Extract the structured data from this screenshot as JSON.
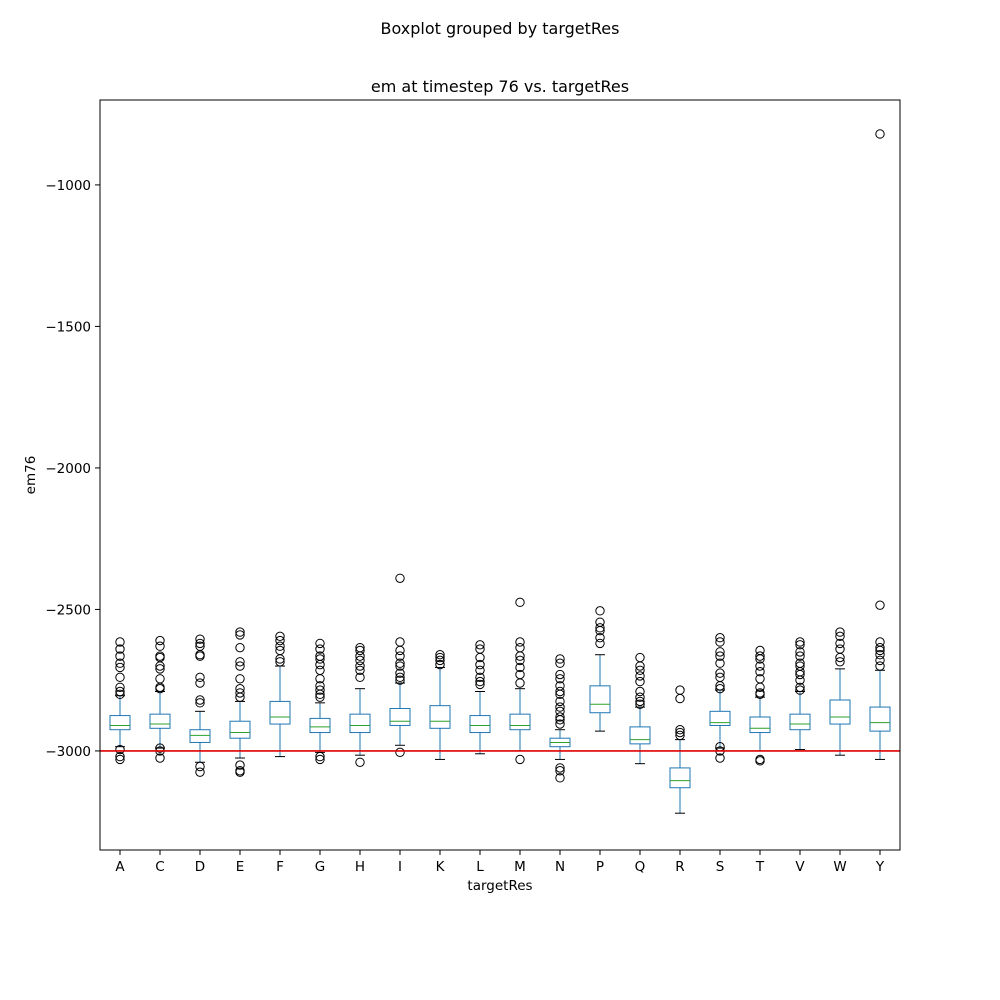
{
  "figure": {
    "suptitle": "Boxplot grouped by targetRes"
  },
  "chart_data": {
    "type": "boxplot",
    "title": "em at timestep 76 vs. targetRes",
    "xlabel": "targetRes",
    "ylabel": "em76",
    "ylim": [
      -3350,
      -700
    ],
    "yticks": [
      -1000,
      -1500,
      -2000,
      -2500,
      -3000
    ],
    "ytick_labels": [
      "−1000",
      "−1500",
      "−2000",
      "−2500",
      "−3000"
    ],
    "grid": false,
    "colors": {
      "box": "#1f77b4",
      "median": "#2ca02c",
      "whisker_cap": "#000000",
      "flier": "#000000",
      "reference_line": "#e00000"
    },
    "reference_line": {
      "y": -3000
    },
    "categories": [
      "A",
      "C",
      "D",
      "E",
      "F",
      "G",
      "H",
      "I",
      "K",
      "L",
      "M",
      "N",
      "P",
      "Q",
      "R",
      "S",
      "T",
      "V",
      "W",
      "Y"
    ],
    "boxes": [
      {
        "name": "A",
        "whislo": -2985,
        "q1": -2925,
        "med": -2910,
        "q3": -2875,
        "whishi": -2805,
        "fliers": [
          -2615,
          -2640,
          -2665,
          -2690,
          -2705,
          -2740,
          -2775,
          -2790,
          -2800,
          -2995,
          -3020,
          -3030
        ]
      },
      {
        "name": "C",
        "whislo": -2990,
        "q1": -2920,
        "med": -2905,
        "q3": -2870,
        "whishi": -2790,
        "fliers": [
          -2610,
          -2630,
          -2665,
          -2670,
          -2700,
          -2710,
          -2745,
          -2775,
          -2780,
          -2990,
          -3000,
          -3025
        ]
      },
      {
        "name": "D",
        "whislo": -3040,
        "q1": -2970,
        "med": -2945,
        "q3": -2925,
        "whishi": -2860,
        "fliers": [
          -2605,
          -2620,
          -2630,
          -2660,
          -2665,
          -2740,
          -2760,
          -2820,
          -2830,
          -3055,
          -3075
        ]
      },
      {
        "name": "E",
        "whislo": -3025,
        "q1": -2955,
        "med": -2935,
        "q3": -2895,
        "whishi": -2825,
        "fliers": [
          -2580,
          -2590,
          -2635,
          -2685,
          -2700,
          -2745,
          -2780,
          -2795,
          -2810,
          -3050,
          -3070,
          -3075
        ]
      },
      {
        "name": "F",
        "whislo": -3020,
        "q1": -2905,
        "med": -2880,
        "q3": -2825,
        "whishi": -2700,
        "fliers": [
          -2595,
          -2610,
          -2630,
          -2645,
          -2675,
          -2685
        ]
      },
      {
        "name": "G",
        "whislo": -3005,
        "q1": -2935,
        "med": -2915,
        "q3": -2885,
        "whishi": -2830,
        "fliers": [
          -2620,
          -2640,
          -2665,
          -2675,
          -2695,
          -2715,
          -2745,
          -2770,
          -2785,
          -2800,
          -2810,
          -3020,
          -3030
        ]
      },
      {
        "name": "H",
        "whislo": -3015,
        "q1": -2935,
        "med": -2910,
        "q3": -2870,
        "whishi": -2780,
        "fliers": [
          -2635,
          -2645,
          -2665,
          -2680,
          -2700,
          -2715,
          -2740,
          -3040
        ]
      },
      {
        "name": "I",
        "whislo": -2980,
        "q1": -2910,
        "med": -2895,
        "q3": -2850,
        "whishi": -2760,
        "fliers": [
          -2390,
          -2615,
          -2645,
          -2665,
          -2690,
          -2700,
          -2725,
          -2740,
          -2750,
          -3005
        ]
      },
      {
        "name": "K",
        "whislo": -3030,
        "q1": -2920,
        "med": -2895,
        "q3": -2840,
        "whishi": -2705,
        "fliers": [
          -2660,
          -2670,
          -2680,
          -2695
        ]
      },
      {
        "name": "L",
        "whislo": -3010,
        "q1": -2935,
        "med": -2910,
        "q3": -2875,
        "whishi": -2790,
        "fliers": [
          -2625,
          -2640,
          -2670,
          -2695,
          -2715,
          -2740,
          -2755,
          -2765
        ]
      },
      {
        "name": "M",
        "whislo": -3000,
        "q1": -2925,
        "med": -2910,
        "q3": -2870,
        "whishi": -2780,
        "fliers": [
          -2475,
          -2615,
          -2635,
          -2665,
          -2680,
          -2705,
          -2730,
          -2760,
          -3030
        ]
      },
      {
        "name": "N",
        "whislo": -3030,
        "q1": -2985,
        "med": -2970,
        "q3": -2955,
        "whishi": -2925,
        "fliers": [
          -2675,
          -2690,
          -2730,
          -2745,
          -2770,
          -2790,
          -2800,
          -2825,
          -2845,
          -2860,
          -2880,
          -2890,
          -2905,
          -3060,
          -3070,
          -3095
        ]
      },
      {
        "name": "P",
        "whislo": -2930,
        "q1": -2865,
        "med": -2835,
        "q3": -2770,
        "whishi": -2660,
        "fliers": [
          -2505,
          -2545,
          -2565,
          -2575,
          -2600,
          -2620
        ]
      },
      {
        "name": "Q",
        "whislo": -3045,
        "q1": -2975,
        "med": -2960,
        "q3": -2915,
        "whishi": -2845,
        "fliers": [
          -2670,
          -2700,
          -2715,
          -2735,
          -2755,
          -2790,
          -2810,
          -2825,
          -2835
        ]
      },
      {
        "name": "R",
        "whislo": -3220,
        "q1": -3130,
        "med": -3105,
        "q3": -3060,
        "whishi": -2960,
        "fliers": [
          -2785,
          -2815,
          -2925,
          -2935,
          -2945
        ]
      },
      {
        "name": "S",
        "whislo": -2990,
        "q1": -2910,
        "med": -2900,
        "q3": -2860,
        "whishi": -2785,
        "fliers": [
          -2600,
          -2615,
          -2650,
          -2665,
          -2690,
          -2725,
          -2740,
          -2770,
          -2780,
          -2985,
          -3000,
          -3025
        ]
      },
      {
        "name": "T",
        "whislo": -3000,
        "q1": -2935,
        "med": -2920,
        "q3": -2880,
        "whishi": -2810,
        "fliers": [
          -2645,
          -2665,
          -2675,
          -2700,
          -2720,
          -2745,
          -2775,
          -2795,
          -2800,
          -3030,
          -3035
        ]
      },
      {
        "name": "V",
        "whislo": -2995,
        "q1": -2925,
        "med": -2905,
        "q3": -2870,
        "whishi": -2790,
        "fliers": [
          -2615,
          -2625,
          -2650,
          -2665,
          -2690,
          -2700,
          -2720,
          -2730,
          -2750,
          -2775,
          -2785
        ]
      },
      {
        "name": "W",
        "whislo": -3015,
        "q1": -2905,
        "med": -2880,
        "q3": -2820,
        "whishi": -2710,
        "fliers": [
          -2580,
          -2595,
          -2620,
          -2640,
          -2670,
          -2685
        ]
      },
      {
        "name": "Y",
        "whislo": -3030,
        "q1": -2930,
        "med": -2900,
        "q3": -2845,
        "whishi": -2715,
        "fliers": [
          -820,
          -2485,
          -2615,
          -2635,
          -2645,
          -2660,
          -2680,
          -2700
        ]
      }
    ]
  }
}
